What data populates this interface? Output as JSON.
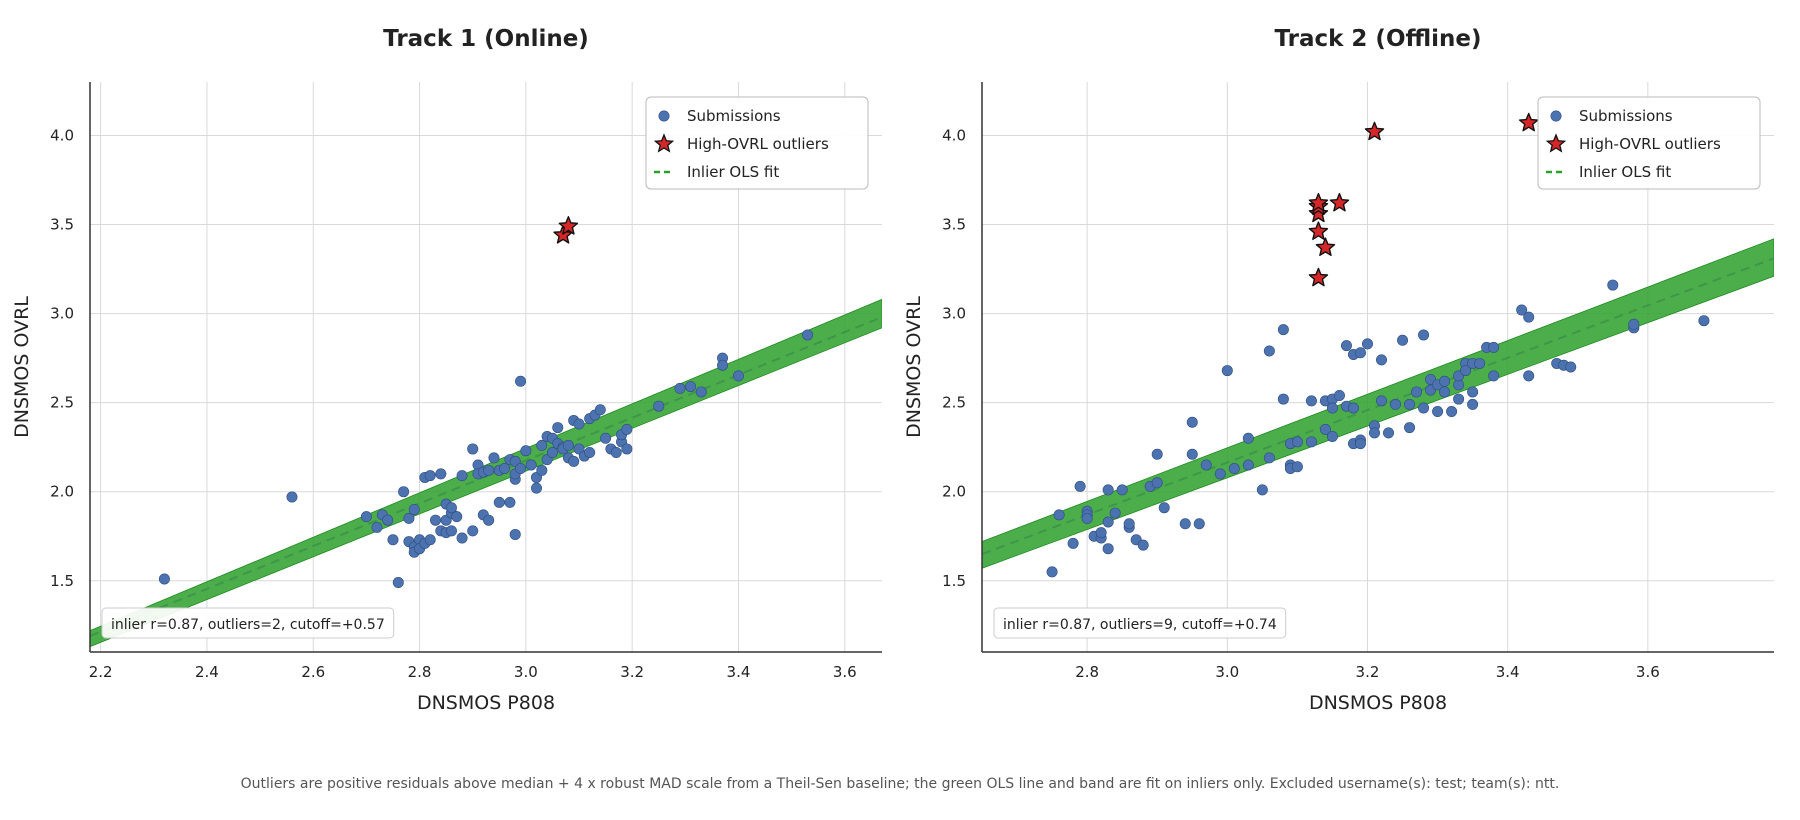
{
  "figure": {
    "footnote": "Outliers are positive residuals above median + 4 x robust MAD scale from a Theil-Sen baseline; the green OLS line and band are fit on inliers only. Excluded username(s): test; team(s): ntt."
  },
  "colors": {
    "inlier": "#4c72b0",
    "inlier_edge": "#2f4f7f",
    "outlier": "#d62728",
    "band": "#2ca02c",
    "fit_line": "#2ca02c",
    "grid": "#d9d9d9",
    "axis": "#333333"
  },
  "chart_data": [
    {
      "type": "scatter",
      "title": "Track 1 (Online)",
      "xlabel": "DNSMOS P808",
      "ylabel": "DNSMOS OVRL",
      "xlim": [
        2.18,
        3.67
      ],
      "ylim": [
        1.1,
        4.3
      ],
      "xticks": [
        "2.2",
        "2.4",
        "2.6",
        "2.8",
        "3.0",
        "3.2",
        "3.4",
        "3.6"
      ],
      "yticks": [
        "1.5",
        "2.0",
        "2.5",
        "3.0",
        "3.5",
        "4.0"
      ],
      "grid": true,
      "legend": {
        "position": "top-right",
        "items": [
          {
            "label": "Submissions",
            "marker": "circle"
          },
          {
            "label": "High-OVRL outliers",
            "marker": "star"
          },
          {
            "label": "Inlier OLS fit",
            "marker": "dashed-line"
          }
        ]
      },
      "annotation": "inlier r=0.87, outliers=2, cutoff=+0.57",
      "fit": {
        "line": [
          [
            2.18,
            1.19
          ],
          [
            3.67,
            2.98
          ]
        ],
        "band_upper": [
          [
            2.18,
            1.22
          ],
          [
            3.67,
            3.08
          ]
        ],
        "band_lower": [
          [
            2.18,
            1.13
          ],
          [
            3.67,
            2.92
          ]
        ]
      },
      "inliers": [
        [
          2.32,
          1.51
        ],
        [
          2.56,
          1.97
        ],
        [
          2.7,
          1.86
        ],
        [
          2.72,
          1.8
        ],
        [
          2.73,
          1.87
        ],
        [
          2.74,
          1.84
        ],
        [
          2.75,
          1.73
        ],
        [
          2.76,
          1.49
        ],
        [
          2.77,
          2.0
        ],
        [
          2.78,
          1.72
        ],
        [
          2.78,
          1.85
        ],
        [
          2.79,
          1.9
        ],
        [
          2.79,
          1.69
        ],
        [
          2.79,
          1.66
        ],
        [
          2.8,
          1.73
        ],
        [
          2.8,
          1.68
        ],
        [
          2.81,
          2.08
        ],
        [
          2.81,
          1.71
        ],
        [
          2.82,
          2.09
        ],
        [
          2.82,
          1.73
        ],
        [
          2.83,
          1.84
        ],
        [
          2.84,
          2.1
        ],
        [
          2.84,
          1.78
        ],
        [
          2.85,
          1.84
        ],
        [
          2.85,
          1.93
        ],
        [
          2.85,
          1.77
        ],
        [
          2.86,
          1.88
        ],
        [
          2.86,
          1.78
        ],
        [
          2.86,
          1.91
        ],
        [
          2.87,
          1.86
        ],
        [
          2.88,
          1.74
        ],
        [
          2.88,
          2.09
        ],
        [
          2.9,
          1.78
        ],
        [
          2.9,
          2.24
        ],
        [
          2.91,
          2.15
        ],
        [
          2.91,
          2.1
        ],
        [
          2.92,
          1.87
        ],
        [
          2.92,
          2.11
        ],
        [
          2.93,
          1.84
        ],
        [
          2.93,
          2.12
        ],
        [
          2.94,
          2.19
        ],
        [
          2.95,
          1.94
        ],
        [
          2.95,
          2.12
        ],
        [
          2.96,
          2.13
        ],
        [
          2.97,
          2.18
        ],
        [
          2.97,
          1.94
        ],
        [
          2.98,
          2.07
        ],
        [
          2.98,
          2.17
        ],
        [
          2.98,
          2.1
        ],
        [
          2.98,
          1.76
        ],
        [
          2.99,
          2.62
        ],
        [
          2.99,
          2.13
        ],
        [
          3.0,
          2.23
        ],
        [
          3.01,
          2.15
        ],
        [
          3.02,
          2.02
        ],
        [
          3.02,
          2.08
        ],
        [
          3.03,
          2.12
        ],
        [
          3.03,
          2.26
        ],
        [
          3.04,
          2.31
        ],
        [
          3.04,
          2.18
        ],
        [
          3.05,
          2.3
        ],
        [
          3.05,
          2.22
        ],
        [
          3.06,
          2.36
        ],
        [
          3.06,
          2.27
        ],
        [
          3.07,
          2.25
        ],
        [
          3.07,
          2.24
        ],
        [
          3.08,
          2.26
        ],
        [
          3.08,
          2.19
        ],
        [
          3.09,
          2.4
        ],
        [
          3.09,
          2.17
        ],
        [
          3.1,
          2.24
        ],
        [
          3.1,
          2.38
        ],
        [
          3.11,
          2.2
        ],
        [
          3.12,
          2.41
        ],
        [
          3.12,
          2.22
        ],
        [
          3.13,
          2.43
        ],
        [
          3.14,
          2.46
        ],
        [
          3.15,
          2.3
        ],
        [
          3.16,
          2.24
        ],
        [
          3.17,
          2.22
        ],
        [
          3.18,
          2.28
        ],
        [
          3.18,
          2.32
        ],
        [
          3.19,
          2.24
        ],
        [
          3.19,
          2.35
        ],
        [
          3.25,
          2.48
        ],
        [
          3.29,
          2.58
        ],
        [
          3.31,
          2.59
        ],
        [
          3.33,
          2.56
        ],
        [
          3.37,
          2.75
        ],
        [
          3.37,
          2.71
        ],
        [
          3.4,
          2.65
        ],
        [
          3.53,
          2.88
        ]
      ],
      "outliers": [
        [
          3.07,
          3.44
        ],
        [
          3.08,
          3.49
        ]
      ]
    },
    {
      "type": "scatter",
      "title": "Track 2 (Offline)",
      "xlabel": "DNSMOS P808",
      "ylabel": "DNSMOS OVRL",
      "xlim": [
        2.65,
        3.78
      ],
      "ylim": [
        1.1,
        4.3
      ],
      "xticks": [
        "2.8",
        "3.0",
        "3.2",
        "3.4",
        "3.6"
      ],
      "yticks": [
        "1.5",
        "2.0",
        "2.5",
        "3.0",
        "3.5",
        "4.0"
      ],
      "grid": true,
      "legend": {
        "position": "top-right",
        "items": [
          {
            "label": "Submissions",
            "marker": "circle"
          },
          {
            "label": "High-OVRL outliers",
            "marker": "star"
          },
          {
            "label": "Inlier OLS fit",
            "marker": "dashed-line"
          }
        ]
      },
      "annotation": "inlier r=0.87, outliers=9, cutoff=+0.74",
      "fit": {
        "line": [
          [
            2.65,
            1.65
          ],
          [
            3.78,
            3.31
          ]
        ],
        "band_upper": [
          [
            2.65,
            1.72
          ],
          [
            3.78,
            3.42
          ]
        ],
        "band_lower": [
          [
            2.65,
            1.57
          ],
          [
            3.78,
            3.21
          ]
        ]
      },
      "inliers": [
        [
          2.75,
          1.55
        ],
        [
          2.76,
          1.87
        ],
        [
          2.78,
          1.71
        ],
        [
          2.79,
          2.03
        ],
        [
          2.8,
          1.89
        ],
        [
          2.8,
          1.87
        ],
        [
          2.8,
          1.85
        ],
        [
          2.81,
          1.75
        ],
        [
          2.82,
          1.74
        ],
        [
          2.82,
          1.77
        ],
        [
          2.83,
          2.01
        ],
        [
          2.83,
          1.83
        ],
        [
          2.83,
          1.68
        ],
        [
          2.84,
          1.88
        ],
        [
          2.85,
          2.01
        ],
        [
          2.86,
          1.8
        ],
        [
          2.86,
          1.82
        ],
        [
          2.87,
          1.73
        ],
        [
          2.88,
          1.7
        ],
        [
          2.89,
          2.03
        ],
        [
          2.9,
          2.21
        ],
        [
          2.9,
          2.05
        ],
        [
          2.91,
          1.91
        ],
        [
          2.94,
          1.82
        ],
        [
          2.95,
          2.21
        ],
        [
          2.95,
          2.39
        ],
        [
          2.96,
          1.82
        ],
        [
          2.97,
          2.15
        ],
        [
          2.99,
          2.1
        ],
        [
          3.0,
          2.68
        ],
        [
          3.01,
          2.13
        ],
        [
          3.03,
          2.15
        ],
        [
          3.03,
          2.3
        ],
        [
          3.05,
          2.01
        ],
        [
          3.06,
          2.19
        ],
        [
          3.06,
          2.79
        ],
        [
          3.08,
          2.52
        ],
        [
          3.08,
          2.91
        ],
        [
          3.09,
          2.15
        ],
        [
          3.09,
          2.13
        ],
        [
          3.09,
          2.27
        ],
        [
          3.1,
          2.14
        ],
        [
          3.1,
          2.28
        ],
        [
          3.12,
          2.28
        ],
        [
          3.12,
          2.51
        ],
        [
          3.14,
          2.51
        ],
        [
          3.14,
          2.35
        ],
        [
          3.15,
          2.31
        ],
        [
          3.15,
          2.52
        ],
        [
          3.15,
          2.47
        ],
        [
          3.16,
          2.54
        ],
        [
          3.17,
          2.48
        ],
        [
          3.17,
          2.82
        ],
        [
          3.18,
          2.77
        ],
        [
          3.18,
          2.27
        ],
        [
          3.18,
          2.47
        ],
        [
          3.19,
          2.78
        ],
        [
          3.19,
          2.29
        ],
        [
          3.19,
          2.27
        ],
        [
          3.2,
          2.83
        ],
        [
          3.21,
          2.37
        ],
        [
          3.21,
          2.33
        ],
        [
          3.22,
          2.74
        ],
        [
          3.22,
          2.51
        ],
        [
          3.23,
          2.33
        ],
        [
          3.24,
          2.49
        ],
        [
          3.25,
          2.85
        ],
        [
          3.26,
          2.49
        ],
        [
          3.26,
          2.36
        ],
        [
          3.27,
          2.56
        ],
        [
          3.28,
          2.47
        ],
        [
          3.28,
          2.88
        ],
        [
          3.29,
          2.63
        ],
        [
          3.29,
          2.57
        ],
        [
          3.3,
          2.45
        ],
        [
          3.3,
          2.6
        ],
        [
          3.31,
          2.56
        ],
        [
          3.31,
          2.62
        ],
        [
          3.32,
          2.45
        ],
        [
          3.33,
          2.6
        ],
        [
          3.33,
          2.65
        ],
        [
          3.33,
          2.52
        ],
        [
          3.34,
          2.72
        ],
        [
          3.34,
          2.68
        ],
        [
          3.35,
          2.49
        ],
        [
          3.35,
          2.56
        ],
        [
          3.35,
          2.72
        ],
        [
          3.36,
          2.72
        ],
        [
          3.37,
          2.81
        ],
        [
          3.38,
          2.81
        ],
        [
          3.38,
          2.65
        ],
        [
          3.42,
          3.02
        ],
        [
          3.43,
          2.98
        ],
        [
          3.43,
          2.65
        ],
        [
          3.47,
          2.72
        ],
        [
          3.48,
          2.71
        ],
        [
          3.49,
          2.7
        ],
        [
          3.55,
          3.16
        ],
        [
          3.58,
          2.92
        ],
        [
          3.58,
          2.94
        ],
        [
          3.68,
          2.96
        ]
      ],
      "outliers": [
        [
          3.13,
          3.2
        ],
        [
          3.13,
          3.46
        ],
        [
          3.13,
          3.56
        ],
        [
          3.13,
          3.6
        ],
        [
          3.14,
          3.37
        ],
        [
          3.16,
          3.62
        ],
        [
          3.21,
          4.02
        ],
        [
          3.43,
          4.07
        ],
        [
          3.13,
          3.62
        ]
      ]
    }
  ]
}
